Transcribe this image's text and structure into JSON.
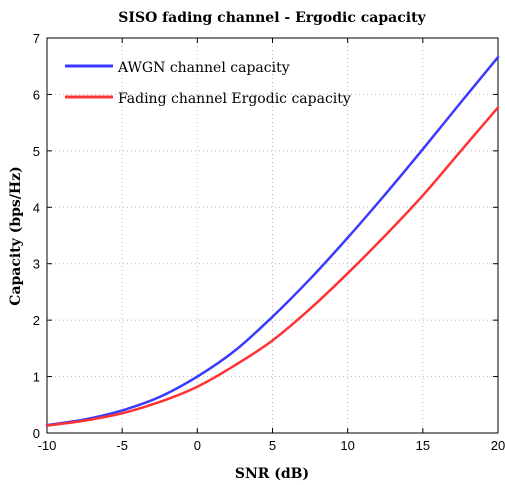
{
  "chart_data": {
    "type": "line",
    "title": "SISO fading channel - Ergodic capacity",
    "xlabel": "SNR (dB)",
    "ylabel": "Capacity (bps/Hz)",
    "xlim": [
      -10,
      20
    ],
    "ylim": [
      0,
      7
    ],
    "xticks": [
      -10,
      -5,
      0,
      5,
      10,
      15,
      20
    ],
    "yticks": [
      0,
      1,
      2,
      3,
      4,
      5,
      6,
      7
    ],
    "grid": true,
    "legend_position": "top-left",
    "x": [
      -10,
      -7.5,
      -5,
      -2.5,
      0,
      2.5,
      5,
      7.5,
      10,
      12.5,
      15,
      17.5,
      20
    ],
    "series": [
      {
        "name": "AWGN channel capacity",
        "color": "#3a3aff",
        "values": [
          0.14,
          0.24,
          0.4,
          0.64,
          1.0,
          1.46,
          2.06,
          2.73,
          3.46,
          4.23,
          5.03,
          5.85,
          6.66
        ]
      },
      {
        "name": "Fading channel Ergodic capacity",
        "color": "#ff3333",
        "values": [
          0.13,
          0.22,
          0.35,
          0.55,
          0.82,
          1.2,
          1.64,
          2.2,
          2.83,
          3.5,
          4.21,
          4.99,
          5.77
        ]
      }
    ]
  }
}
